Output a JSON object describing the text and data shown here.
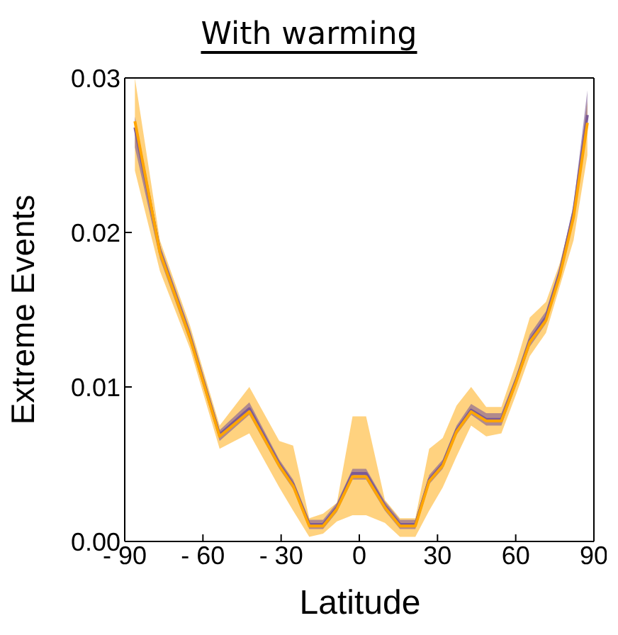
{
  "chart_data": {
    "type": "line",
    "title": "With warming",
    "xlabel": "Latitude",
    "ylabel": "Extreme Events",
    "x": [
      -86.1,
      -76.5,
      -65,
      -53.6,
      -42.2,
      -30.7,
      -25.4,
      -19.2,
      -13.9,
      -8.6,
      -2.6,
      2.6,
      9.8,
      15.6,
      21.5,
      26.8,
      32,
      37.3,
      42.9,
      48.7,
      54.5,
      60.1,
      65.4,
      71.6,
      76.9,
      82.2,
      87.5
    ],
    "series": [
      {
        "color": "#7b5a96",
        "values": [
          0.0268,
          0.0188,
          0.0133,
          0.0069,
          0.0086,
          0.005,
          0.0037,
          0.0011,
          0.0011,
          0.0022,
          0.0044,
          0.0044,
          0.0023,
          0.0011,
          0.0011,
          0.004,
          0.005,
          0.0072,
          0.0085,
          0.0079,
          0.0079,
          0.0104,
          0.013,
          0.0145,
          0.0174,
          0.0213,
          0.0276
        ],
        "lower": [
          0.0255,
          0.0183,
          0.0129,
          0.0065,
          0.0082,
          0.0047,
          0.0034,
          0.0008,
          0.0008,
          0.0019,
          0.004,
          0.004,
          0.002,
          0.0008,
          0.0008,
          0.0037,
          0.0047,
          0.0069,
          0.0082,
          0.0075,
          0.0075,
          0.0101,
          0.0126,
          0.0141,
          0.017,
          0.0208,
          0.027
        ],
        "upper": [
          0.0275,
          0.0192,
          0.0137,
          0.0072,
          0.009,
          0.0053,
          0.004,
          0.0014,
          0.0014,
          0.0025,
          0.0047,
          0.0047,
          0.0026,
          0.0014,
          0.0014,
          0.0043,
          0.0053,
          0.0075,
          0.0089,
          0.0083,
          0.0083,
          0.0107,
          0.0134,
          0.0149,
          0.0178,
          0.0218,
          0.0292
        ]
      },
      {
        "color": "#ffa500",
        "values": [
          0.0272,
          0.0187,
          0.0132,
          0.0068,
          0.0084,
          0.0049,
          0.0036,
          0.001,
          0.001,
          0.0021,
          0.0042,
          0.0042,
          0.0022,
          0.001,
          0.001,
          0.0039,
          0.0049,
          0.0071,
          0.0084,
          0.0078,
          0.0078,
          0.0103,
          0.0129,
          0.0143,
          0.0172,
          0.021,
          0.0271
        ],
        "lower": [
          0.024,
          0.0175,
          0.0125,
          0.006,
          0.007,
          0.0035,
          0.002,
          0.0003,
          0.0005,
          0.0013,
          0.0017,
          0.0017,
          0.0012,
          0.0003,
          0.0003,
          0.002,
          0.0035,
          0.0055,
          0.0075,
          0.0068,
          0.007,
          0.0095,
          0.012,
          0.0135,
          0.0165,
          0.0195,
          0.025
        ],
        "upper": [
          0.03,
          0.0195,
          0.014,
          0.0075,
          0.01,
          0.0065,
          0.0062,
          0.0015,
          0.0018,
          0.0025,
          0.0081,
          0.0081,
          0.0027,
          0.0015,
          0.0015,
          0.006,
          0.0067,
          0.0088,
          0.01,
          0.0087,
          0.0087,
          0.0115,
          0.0145,
          0.0155,
          0.018,
          0.0215,
          0.0285
        ]
      }
    ],
    "xlim": [
      -90,
      90
    ],
    "xticks": [
      {
        "value": -90,
        "label": "- 90"
      },
      {
        "value": -60,
        "label": "- 60"
      },
      {
        "value": -30,
        "label": "- 30"
      },
      0,
      30,
      60,
      90
    ],
    "ylim": [
      0,
      0.03
    ],
    "yticks": [
      {
        "value": 0,
        "label": "0.00"
      },
      0.01,
      0.02,
      0.03
    ],
    "grid": false,
    "marker": "none",
    "line_style": "solid"
  }
}
